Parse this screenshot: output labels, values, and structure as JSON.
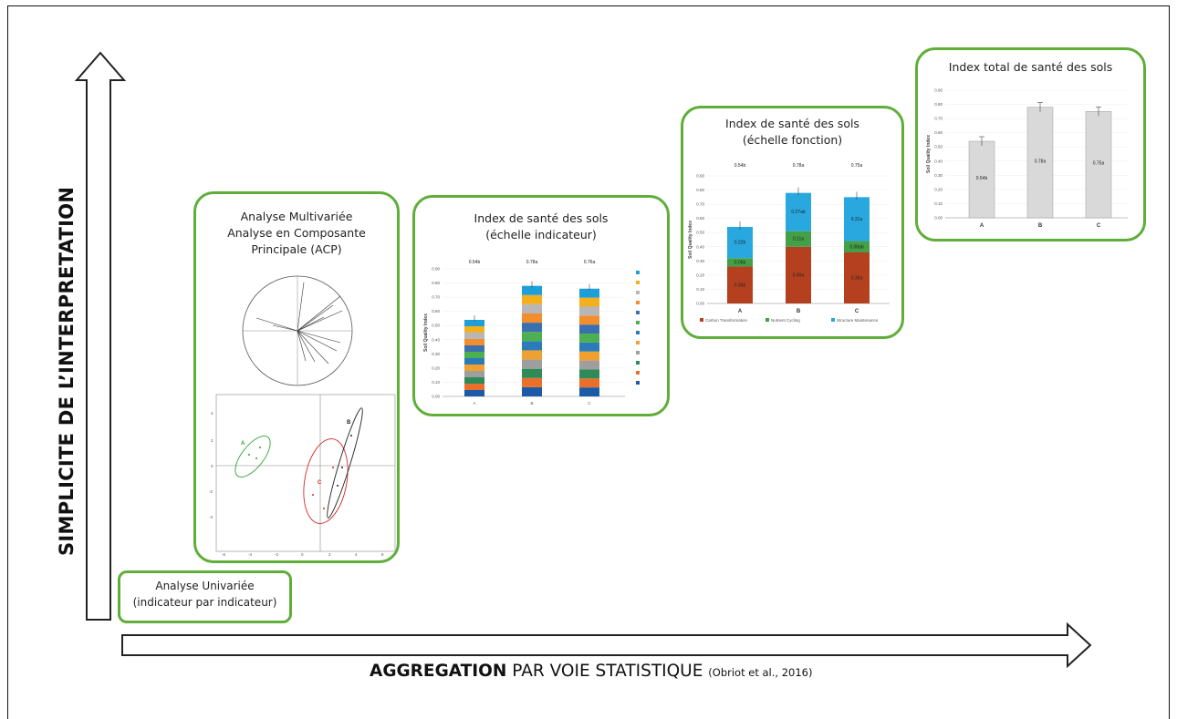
{
  "axes": {
    "y_label": "SIMPLICITE DE L’INTERPRETATION",
    "x_label_bold": "AGGREGATION",
    "x_label_rest": " PAR VOIE STATISTIQUE ",
    "x_label_citation": "(Obriot et al., 2016)"
  },
  "steps": {
    "univariate": {
      "title": "Analyse Univariée\n(indicateur par indicateur)"
    },
    "multivariate": {
      "title": "Analyse Multivariée\nAnalyse en Composante\nPrincipale (ACP)",
      "scores": {
        "groups": [
          {
            "name": "A",
            "color": "#2ca02c"
          },
          {
            "name": "B",
            "color": "#222222"
          },
          {
            "name": "C",
            "color": "#d62728"
          }
        ],
        "x_ticks": [
          "-6",
          "-4",
          "-2",
          "0",
          "2",
          "4",
          "6"
        ],
        "y_ticks": [
          "4",
          "2",
          "0",
          "-2",
          "-4"
        ]
      }
    },
    "indicator_scale": {
      "title": "Index de santé des sols\n(échelle indicateur)",
      "chart_data": {
        "type": "bar",
        "stacked": true,
        "categories": [
          "A",
          "B",
          "C"
        ],
        "totals": [
          0.54,
          0.78,
          0.76
        ],
        "top_labels": [
          "0.54b",
          "0.78a",
          "0.76a"
        ],
        "ylim": [
          0,
          0.9
        ],
        "y_ticks": [
          "0.00",
          "0.10",
          "0.20",
          "0.30",
          "0.40",
          "0.50",
          "0.60",
          "0.70",
          "0.80",
          "0.90"
        ],
        "ylabel": "Soil Quality Index",
        "series_colors": [
          "#1f9fd8",
          "#f2b01e",
          "#b7b7b7",
          "#f28e2b",
          "#3a6fb0",
          "#4caf50",
          "#2b7bba",
          "#f0a030",
          "#9e9e9e",
          "#2e8b57",
          "#e8702a",
          "#1c5aa8"
        ]
      }
    },
    "function_scale": {
      "title": "Index de santé des sols\n(échelle fonction)",
      "chart_data": {
        "type": "bar",
        "stacked": true,
        "categories": [
          "A",
          "B",
          "C"
        ],
        "top_labels": [
          "0.54b",
          "0.78a",
          "0.75a"
        ],
        "ylim": [
          0,
          0.9
        ],
        "y_ticks": [
          "0.00",
          "0.10",
          "0.20",
          "0.30",
          "0.40",
          "0.50",
          "0.60",
          "0.70",
          "0.80",
          "0.90"
        ],
        "ylabel": "Soil Quality Index",
        "series": [
          {
            "name": "Carbon Transformation",
            "color": "#b5401f",
            "values": [
              0.26,
              0.4,
              0.36
            ],
            "labels": [
              "0.26b",
              "0.40a",
              "0.36a"
            ]
          },
          {
            "name": "Nutrient Cycling",
            "color": "#43a047",
            "values": [
              0.06,
              0.11,
              0.08
            ],
            "labels": [
              "0.06b",
              "0.11a",
              "0.08ab"
            ]
          },
          {
            "name": "Structure Maintenance",
            "color": "#29a8e0",
            "values": [
              0.22,
              0.27,
              0.31
            ],
            "labels": [
              "0.22b",
              "0.27ab",
              "0.31a"
            ]
          }
        ]
      }
    },
    "total_index": {
      "title": "Index total de santé des sols",
      "chart_data": {
        "type": "bar",
        "categories": [
          "A",
          "B",
          "C"
        ],
        "values": [
          0.54,
          0.78,
          0.75
        ],
        "labels": [
          "0.54b",
          "0.78a",
          "0.75a"
        ],
        "ylim": [
          0,
          0.9
        ],
        "y_ticks": [
          "0.00",
          "0.10",
          "0.20",
          "0.30",
          "0.40",
          "0.50",
          "0.60",
          "0.70",
          "0.80",
          "0.90"
        ],
        "ylabel": "Soil Quality Index",
        "bar_color": "#d9d9d9"
      }
    }
  }
}
